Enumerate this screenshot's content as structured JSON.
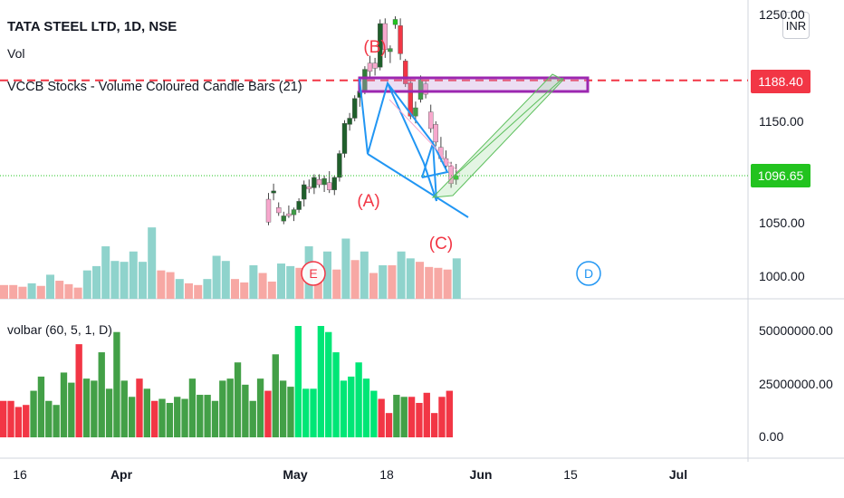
{
  "chart_data": [
    {
      "type": "candlestick",
      "title": "TATA STEEL LTD, 1D, NSE",
      "indicators": [
        "Vol",
        "VCCB Stocks - Volume Coloured Candle Bars (21)"
      ],
      "currency": "INR",
      "ylim": [
        980,
        1255
      ],
      "ticks": [
        1000,
        1050,
        1100,
        1150,
        1200,
        1250
      ],
      "tick_labels": [
        "1000.00",
        "1050.00",
        "",
        "1150.00",
        "",
        ""
      ],
      "price_labels": [
        {
          "value": 1188.4,
          "text": "1188.40",
          "color": "#f23645"
        },
        {
          "value": 1096.65,
          "text": "1096.65",
          "color": "#22c31f"
        }
      ],
      "candles": [
        {
          "o": 1074,
          "h": 1080,
          "l": 1049,
          "c": 1052,
          "color": "#f7a8cd"
        },
        {
          "o": 1080,
          "h": 1089,
          "l": 1073,
          "c": 1082,
          "color": "#1f5f2b"
        },
        {
          "o": 1066,
          "h": 1071,
          "l": 1058,
          "c": 1061,
          "color": "#f7a8cd"
        },
        {
          "o": 1053,
          "h": 1062,
          "l": 1050,
          "c": 1058,
          "color": "#2f7d36"
        },
        {
          "o": 1060,
          "h": 1068,
          "l": 1056,
          "c": 1058,
          "color": "#f7a8cd"
        },
        {
          "o": 1059,
          "h": 1066,
          "l": 1053,
          "c": 1064,
          "color": "#3f9c46"
        },
        {
          "o": 1064,
          "h": 1075,
          "l": 1061,
          "c": 1072,
          "color": "#1f5f2b"
        },
        {
          "o": 1074,
          "h": 1092,
          "l": 1067,
          "c": 1088,
          "color": "#1f5f2b"
        },
        {
          "o": 1086,
          "h": 1093,
          "l": 1080,
          "c": 1084,
          "color": "#f7a8cd"
        },
        {
          "o": 1085,
          "h": 1098,
          "l": 1079,
          "c": 1095,
          "color": "#1f5f2b"
        },
        {
          "o": 1093,
          "h": 1098,
          "l": 1085,
          "c": 1088,
          "color": "#f7a8cd"
        },
        {
          "o": 1088,
          "h": 1097,
          "l": 1081,
          "c": 1094,
          "color": "#2f7d36"
        },
        {
          "o": 1090,
          "h": 1101,
          "l": 1080,
          "c": 1083,
          "color": "#f7a8cd"
        },
        {
          "o": 1083,
          "h": 1097,
          "l": 1078,
          "c": 1095,
          "color": "#1f5f2b"
        },
        {
          "o": 1095,
          "h": 1121,
          "l": 1091,
          "c": 1118,
          "color": "#1f5f2b"
        },
        {
          "o": 1118,
          "h": 1150,
          "l": 1114,
          "c": 1147,
          "color": "#1f5f2b"
        },
        {
          "o": 1146,
          "h": 1157,
          "l": 1140,
          "c": 1152,
          "color": "#1f5f2b"
        },
        {
          "o": 1152,
          "h": 1174,
          "l": 1149,
          "c": 1171,
          "color": "#1f5f2b"
        },
        {
          "o": 1172,
          "h": 1183,
          "l": 1163,
          "c": 1178,
          "color": "#1f5f2b"
        },
        {
          "o": 1178,
          "h": 1202,
          "l": 1175,
          "c": 1199,
          "color": "#2f7d36"
        },
        {
          "o": 1197,
          "h": 1212,
          "l": 1190,
          "c": 1205,
          "color": "#f7a8cd"
        },
        {
          "o": 1205,
          "h": 1210,
          "l": 1193,
          "c": 1200,
          "color": "#f7a8cd"
        },
        {
          "o": 1201,
          "h": 1247,
          "l": 1198,
          "c": 1243,
          "color": "#1f5f2b"
        },
        {
          "o": 1243,
          "h": 1248,
          "l": 1210,
          "c": 1218,
          "color": "#f7a8cd"
        },
        {
          "o": 1216,
          "h": 1222,
          "l": 1205,
          "c": 1219,
          "color": "#3f9c46"
        },
        {
          "o": 1242,
          "h": 1250,
          "l": 1238,
          "c": 1247,
          "color": "#22c31f"
        },
        {
          "o": 1241,
          "h": 1248,
          "l": 1208,
          "c": 1214,
          "color": "#f23645"
        },
        {
          "o": 1207,
          "h": 1209,
          "l": 1182,
          "c": 1185,
          "color": "#f23645"
        },
        {
          "o": 1186,
          "h": 1190,
          "l": 1151,
          "c": 1154,
          "color": "#f23645"
        },
        {
          "o": 1154,
          "h": 1168,
          "l": 1147,
          "c": 1162,
          "color": "#3f9c46"
        },
        {
          "o": 1170,
          "h": 1193,
          "l": 1167,
          "c": 1189,
          "color": "#3f9c46"
        },
        {
          "o": 1185,
          "h": 1189,
          "l": 1171,
          "c": 1175,
          "color": "#f7a8cd"
        },
        {
          "o": 1158,
          "h": 1165,
          "l": 1138,
          "c": 1142,
          "color": "#f7a8cd"
        },
        {
          "o": 1146,
          "h": 1149,
          "l": 1125,
          "c": 1129,
          "color": "#f7a8cd"
        },
        {
          "o": 1124,
          "h": 1134,
          "l": 1110,
          "c": 1113,
          "color": "#f7a8cd"
        },
        {
          "o": 1113,
          "h": 1121,
          "l": 1101,
          "c": 1106,
          "color": "#f7a8cd"
        },
        {
          "o": 1106,
          "h": 1110,
          "l": 1085,
          "c": 1089,
          "color": "#f7a8cd"
        },
        {
          "o": 1093,
          "h": 1108,
          "l": 1088,
          "c": 1096.65,
          "color": "#22c31f"
        }
      ],
      "volume": [
        {
          "v": 0.16,
          "color": "#f7a8a4"
        },
        {
          "v": 0.16,
          "color": "#f7a8a4"
        },
        {
          "v": 0.14,
          "color": "#f7a8a4"
        },
        {
          "v": 0.18,
          "color": "#8fd3cc"
        },
        {
          "v": 0.15,
          "color": "#f7a8a4"
        },
        {
          "v": 0.28,
          "color": "#8fd3cc"
        },
        {
          "v": 0.21,
          "color": "#f7a8a4"
        },
        {
          "v": 0.17,
          "color": "#f7a8a4"
        },
        {
          "v": 0.13,
          "color": "#f7a8a4"
        },
        {
          "v": 0.33,
          "color": "#8fd3cc"
        },
        {
          "v": 0.38,
          "color": "#8fd3cc"
        },
        {
          "v": 0.61,
          "color": "#8fd3cc"
        },
        {
          "v": 0.44,
          "color": "#8fd3cc"
        },
        {
          "v": 0.43,
          "color": "#8fd3cc"
        },
        {
          "v": 0.55,
          "color": "#8fd3cc"
        },
        {
          "v": 0.43,
          "color": "#8fd3cc"
        },
        {
          "v": 0.83,
          "color": "#8fd3cc"
        },
        {
          "v": 0.33,
          "color": "#f7a8a4"
        },
        {
          "v": 0.31,
          "color": "#f7a8a4"
        },
        {
          "v": 0.23,
          "color": "#8fd3cc"
        },
        {
          "v": 0.18,
          "color": "#f7a8a4"
        },
        {
          "v": 0.16,
          "color": "#f7a8a4"
        },
        {
          "v": 0.23,
          "color": "#8fd3cc"
        },
        {
          "v": 0.5,
          "color": "#8fd3cc"
        },
        {
          "v": 0.44,
          "color": "#8fd3cc"
        },
        {
          "v": 0.23,
          "color": "#f7a8a4"
        },
        {
          "v": 0.19,
          "color": "#f7a8a4"
        },
        {
          "v": 0.39,
          "color": "#8fd3cc"
        },
        {
          "v": 0.3,
          "color": "#f7a8a4"
        },
        {
          "v": 0.2,
          "color": "#f7a8a4"
        },
        {
          "v": 0.41,
          "color": "#8fd3cc"
        },
        {
          "v": 0.38,
          "color": "#8fd3cc"
        },
        {
          "v": 0.36,
          "color": "#f7a8a4"
        },
        {
          "v": 0.61,
          "color": "#8fd3cc"
        },
        {
          "v": 0.35,
          "color": "#f7a8a4"
        },
        {
          "v": 0.55,
          "color": "#8fd3cc"
        },
        {
          "v": 0.34,
          "color": "#f7a8a4"
        },
        {
          "v": 0.7,
          "color": "#8fd3cc"
        },
        {
          "v": 0.45,
          "color": "#f7a8a4"
        },
        {
          "v": 0.55,
          "color": "#8fd3cc"
        },
        {
          "v": 0.3,
          "color": "#f7a8a4"
        },
        {
          "v": 0.39,
          "color": "#8fd3cc"
        },
        {
          "v": 0.39,
          "color": "#f7a8a4"
        },
        {
          "v": 0.55,
          "color": "#8fd3cc"
        },
        {
          "v": 0.47,
          "color": "#8fd3cc"
        },
        {
          "v": 0.43,
          "color": "#f7a8a4"
        },
        {
          "v": 0.37,
          "color": "#f7a8a4"
        },
        {
          "v": 0.36,
          "color": "#f7a8a4"
        },
        {
          "v": 0.34,
          "color": "#f7a8a4"
        },
        {
          "v": 0.47,
          "color": "#8fd3cc"
        }
      ],
      "annotations": [
        {
          "text": "(B)",
          "color": "#f23645"
        },
        {
          "text": "(A)",
          "color": "#f23645"
        },
        {
          "text": "(C)",
          "color": "#f23645"
        },
        {
          "text": "E",
          "color": "#f23645"
        },
        {
          "text": "D",
          "color": "#2196f3"
        }
      ]
    },
    {
      "type": "bar",
      "title": "volbar (60, 5, 1, D)",
      "ylim": [
        0,
        56000000
      ],
      "tick_labels": [
        "50000000.00",
        "25000000.00",
        "0.00"
      ],
      "ticks": [
        50000000,
        25000000,
        0
      ],
      "values": [
        18,
        18,
        15,
        16,
        23,
        30,
        18,
        16,
        32,
        27,
        46,
        29,
        28,
        42,
        24,
        52,
        28,
        20,
        29,
        24,
        18,
        19,
        17,
        20,
        19,
        29,
        21,
        21,
        18,
        28,
        29,
        37,
        26,
        18,
        29,
        23,
        41,
        28,
        25,
        55,
        24,
        24,
        55,
        52,
        42,
        28,
        30,
        37,
        29,
        23,
        19,
        12,
        21,
        20,
        20,
        17,
        22,
        12,
        20,
        23
      ],
      "value_unit": "millions",
      "colors": [
        "#f23645",
        "#f23645",
        "#f23645",
        "#f23645",
        "#43a047",
        "#43a047",
        "#43a047",
        "#43a047",
        "#43a047",
        "#43a047",
        "#f23645",
        "#43a047",
        "#43a047",
        "#43a047",
        "#43a047",
        "#43a047",
        "#43a047",
        "#43a047",
        "#f23645",
        "#43a047",
        "#f23645",
        "#43a047",
        "#43a047",
        "#43a047",
        "#43a047",
        "#43a047",
        "#43a047",
        "#43a047",
        "#43a047",
        "#43a047",
        "#43a047",
        "#43a047",
        "#43a047",
        "#43a047",
        "#43a047",
        "#f23645",
        "#43a047",
        "#43a047",
        "#43a047",
        "#00e676",
        "#00e676",
        "#00e676",
        "#00e676",
        "#00e676",
        "#00e676",
        "#00e676",
        "#00e676",
        "#00e676",
        "#00e676",
        "#00e676",
        "#f23645",
        "#f23645",
        "#43a047",
        "#43a047",
        "#f23645",
        "#f23645",
        "#f23645",
        "#f23645",
        "#f23645",
        "#f23645"
      ]
    }
  ],
  "x_axis": {
    "labels": [
      {
        "text": "16",
        "bold": false
      },
      {
        "text": "Apr",
        "bold": true
      },
      {
        "text": "May",
        "bold": true
      },
      {
        "text": "18",
        "bold": false
      },
      {
        "text": "Jun",
        "bold": true
      },
      {
        "text": "15",
        "bold": false
      },
      {
        "text": "Jul",
        "bold": true
      }
    ]
  },
  "legend": {
    "title": "TATA STEEL LTD, 1D, NSE",
    "vol": "Vol",
    "vccb": "VCCB Stocks - Volume Coloured Candle Bars (21)",
    "volbar": "volbar (60, 5, 1, D)"
  },
  "currency_button": "INR",
  "price_tags": {
    "red": {
      "text": "1188.40",
      "color": "#f23645"
    },
    "green": {
      "text": "1096.65",
      "color": "#22c31f"
    }
  },
  "y_axis_labels": [
    "1000.00",
    "1050.00",
    "1150.00"
  ],
  "volbar_axis_labels": [
    "50000000.00",
    "25000000.00",
    "0.00"
  ]
}
